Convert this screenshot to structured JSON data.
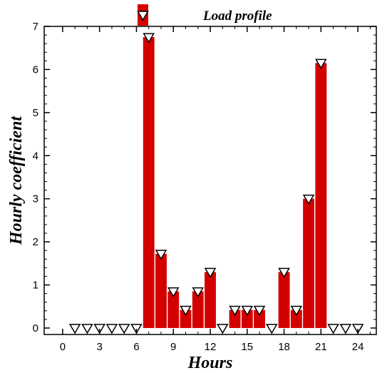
{
  "chart_data": {
    "type": "bar",
    "xlabel": "Hours",
    "ylabel": "Hourly coefficient",
    "xlim": [
      -1.5,
      25.5
    ],
    "ylim": [
      -0.15,
      7
    ],
    "xticks": [
      0,
      3,
      6,
      9,
      12,
      15,
      18,
      21,
      24
    ],
    "yticks": [
      0,
      1,
      2,
      3,
      4,
      5,
      6,
      7
    ],
    "legend_position": "top-center",
    "grid": false,
    "bar_color": "#d40000",
    "series": [
      {
        "name": "Load profile",
        "x": [
          1,
          2,
          3,
          4,
          5,
          6,
          7,
          8,
          9,
          10,
          11,
          12,
          13,
          14,
          15,
          16,
          17,
          18,
          19,
          20,
          21,
          22,
          23,
          24
        ],
        "values": [
          0,
          0,
          0,
          0,
          0,
          0,
          6.75,
          1.72,
          0.85,
          0.42,
          0.85,
          1.3,
          0,
          0.42,
          0.42,
          0.42,
          0,
          1.3,
          0.42,
          3.0,
          6.15,
          0,
          0,
          0
        ]
      }
    ]
  }
}
